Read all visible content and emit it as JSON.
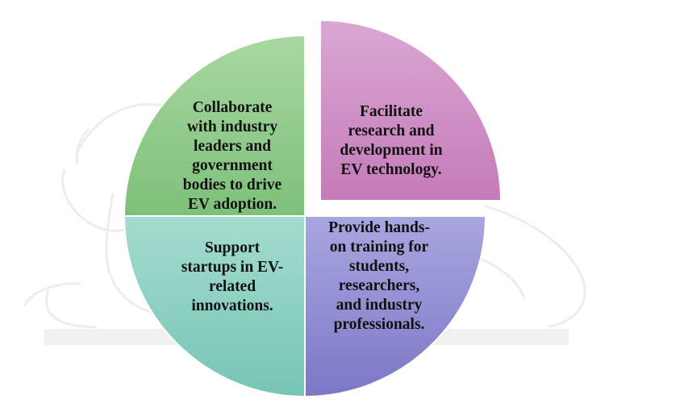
{
  "diagram": {
    "type": "quadrant-pie",
    "segments": [
      {
        "id": "top-left",
        "text": "Collaborate\nwith industry\nleaders and\ngovernment\nbodies to drive\nEV adoption.",
        "color_top": "#a8d8a0",
        "color_bottom": "#7dc07a"
      },
      {
        "id": "top-right",
        "text": "Facilitate\nresearch and\ndevelopment in\nEV technology.",
        "color_top": "#d9a8d2",
        "color_bottom": "#c57ab9"
      },
      {
        "id": "bottom-left",
        "text": "Support\nstartups in EV-\nrelated\ninnovations.",
        "color_top": "#a4dccf",
        "color_bottom": "#76c4b5"
      },
      {
        "id": "bottom-right",
        "text": "Provide hands-\non training for\nstudents,\nresearchers,\nand industry\nprofessionals.",
        "color_top": "#a9a6e0",
        "color_bottom": "#7b78c6"
      }
    ]
  }
}
